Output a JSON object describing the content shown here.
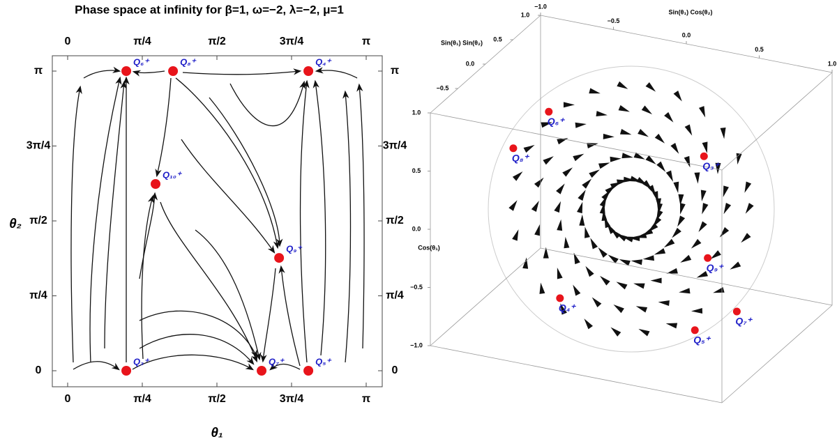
{
  "chart_data": [
    {
      "type": "scatter",
      "title": "Phase space at infinity for β=1, ω=−2, λ=−2, μ=1",
      "x_label": "θ₁",
      "y_label": "θ₂",
      "xlim": [
        0,
        3.1416
      ],
      "ylim": [
        0,
        3.1416
      ],
      "xticks": [
        0,
        {
          "value": 0.7854,
          "label": "π/4"
        },
        {
          "value": 1.5708,
          "label": "π/2"
        },
        {
          "value": 2.3562,
          "label": "3π/4"
        },
        {
          "value": 3.1416,
          "label": "π"
        }
      ],
      "yticks": [
        0,
        {
          "value": 0.7854,
          "label": "π/4"
        },
        {
          "value": 1.5708,
          "label": "π/2"
        },
        {
          "value": 2.3562,
          "label": "3π/4"
        },
        {
          "value": 3.1416,
          "label": "π"
        }
      ],
      "point_labels": [
        "Q₃⁺",
        "Q₇⁺",
        "Q₅⁺",
        "Q₆⁺",
        "Q₈⁺",
        "Q₄⁺",
        "Q₁₀⁺",
        "Q₉⁺"
      ],
      "x": [
        0.617,
        2.041,
        2.533,
        0.617,
        1.109,
        2.533,
        0.925,
        2.225
      ],
      "y": [
        0,
        0,
        0,
        3.1416,
        3.1416,
        3.1416,
        1.958,
        1.183
      ],
      "color": "#e8141b",
      "label_color": "#1f1fc8"
    },
    {
      "type": "scatter3d",
      "x_label": "Sin(θ₁) Cos(θ₂)",
      "y_label": "Sin(θ₁) Sin(θ₂)",
      "z_label": "Cos(θ₁)",
      "xlim": [
        -1,
        1
      ],
      "ylim": [
        -1,
        1
      ],
      "zlim": [
        -1,
        1
      ],
      "xticks": [
        {
          "value": -1,
          "label": "−1.0"
        },
        {
          "value": -0.5,
          "label": "−0.5"
        },
        {
          "value": 0,
          "label": "0.0"
        },
        {
          "value": 0.5,
          "label": "0.5"
        },
        {
          "value": 1,
          "label": "1.0"
        }
      ],
      "yticks": [
        {
          "value": -0.5,
          "label": "−0.5"
        },
        {
          "value": 0,
          "label": "0.0"
        },
        {
          "value": 0.5,
          "label": "0.5"
        },
        {
          "value": 1,
          "label": "1.0"
        }
      ],
      "zticks": [
        {
          "value": -1,
          "label": "−1.0"
        },
        {
          "value": -0.5,
          "label": "−0.5"
        },
        {
          "value": 0,
          "label": "0.0"
        },
        {
          "value": 0.5,
          "label": "0.5"
        },
        {
          "value": 1,
          "label": "1.0"
        }
      ],
      "point_labels": [
        "Q₆⁺",
        "Q₈⁺",
        "Q₃⁺",
        "Q₉⁺",
        "Q₄⁺",
        "Q₅⁺",
        "Q₇⁺"
      ],
      "x": [
        -0.49,
        -0.62,
        0.14,
        0.26,
        -0.47,
        0.55,
        0.8
      ],
      "y": [
        -0.2,
        -0.5,
        0.95,
        0.7,
        -0.05,
        -0.3,
        -0.2
      ],
      "z": [
        0.8,
        0.58,
        0.09,
        -0.65,
        -0.86,
        -0.78,
        -0.6
      ],
      "color": "#e8141b",
      "label_color": "#1f1fc8"
    }
  ]
}
